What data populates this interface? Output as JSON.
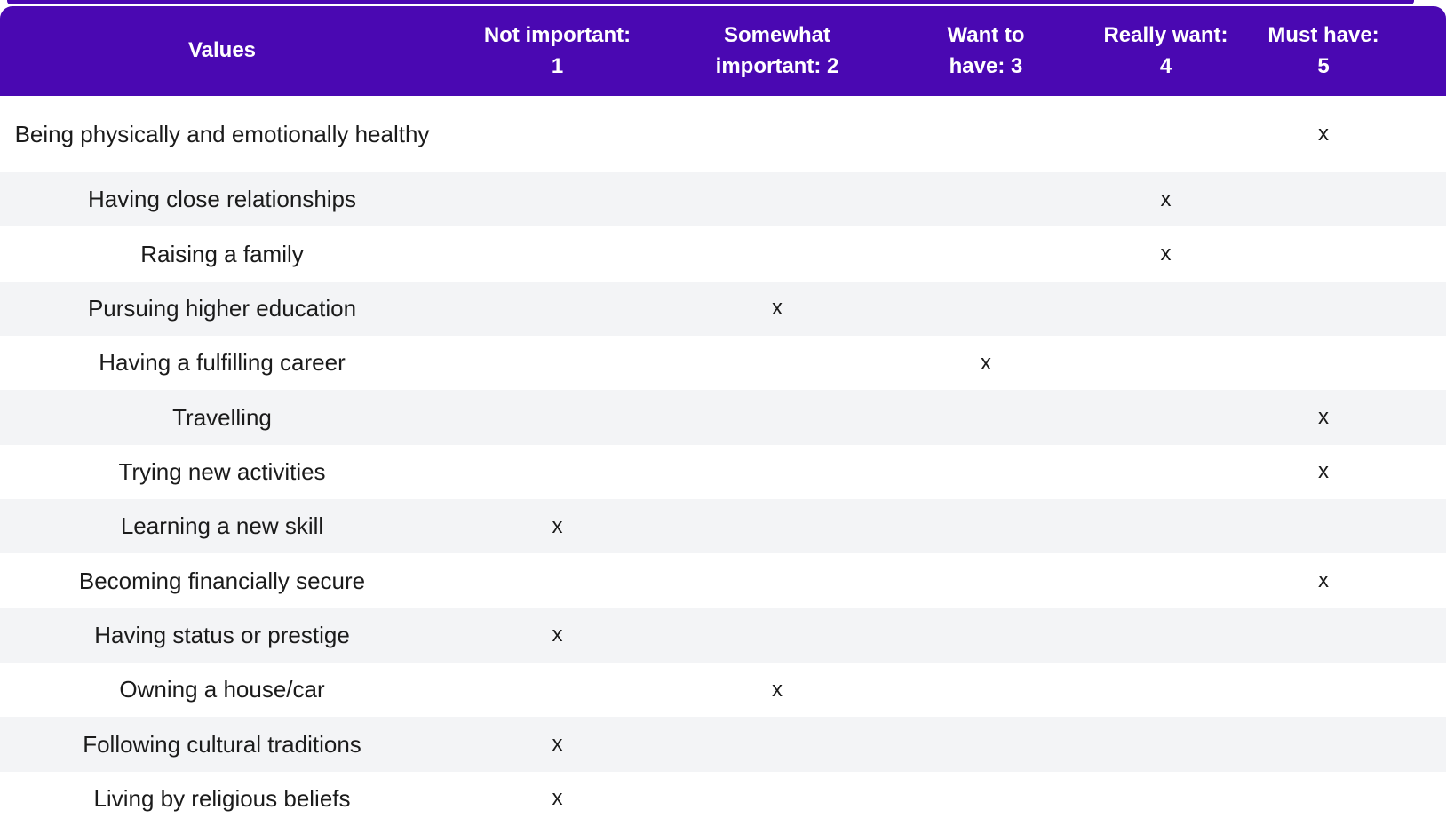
{
  "colors": {
    "header_bg": "#4A08B2",
    "header_text": "#FFFFFF",
    "row_alt_bg": "#F3F4F6",
    "row_bg": "#FFFFFF",
    "text": "#1B1B1B"
  },
  "table": {
    "mark": "x",
    "header": {
      "columns": [
        {
          "label": "Values",
          "line1": "Values",
          "line2": ""
        },
        {
          "label": "Not important: 1",
          "line1": "Not important:",
          "line2": "1"
        },
        {
          "label": "Somewhat important: 2",
          "line1": "Somewhat",
          "line2": "important: 2"
        },
        {
          "label": "Want to have: 3",
          "line1": "Want to",
          "line2": "have: 3"
        },
        {
          "label": "Really want: 4",
          "line1": "Really want:",
          "line2": "4"
        },
        {
          "label": "Must have: 5",
          "line1": "Must have:",
          "line2": "5"
        }
      ]
    },
    "rows": [
      {
        "label": "Being physically and emotionally healthy",
        "rating": 5,
        "cells": [
          "",
          "",
          "",
          "",
          "x"
        ]
      },
      {
        "label": "Having close relationships",
        "rating": 4,
        "cells": [
          "",
          "",
          "",
          "x",
          ""
        ]
      },
      {
        "label": "Raising a family",
        "rating": 4,
        "cells": [
          "",
          "",
          "",
          "x",
          ""
        ]
      },
      {
        "label": "Pursuing higher education",
        "rating": 2,
        "cells": [
          "",
          "x",
          "",
          "",
          ""
        ]
      },
      {
        "label": "Having a fulfilling career",
        "rating": 3,
        "cells": [
          "",
          "",
          "x",
          "",
          ""
        ]
      },
      {
        "label": "Travelling",
        "rating": 5,
        "cells": [
          "",
          "",
          "",
          "",
          "x"
        ]
      },
      {
        "label": "Trying new activities",
        "rating": 5,
        "cells": [
          "",
          "",
          "",
          "",
          "x"
        ]
      },
      {
        "label": "Learning a new skill",
        "rating": 1,
        "cells": [
          "x",
          "",
          "",
          "",
          ""
        ]
      },
      {
        "label": "Becoming financially secure",
        "rating": 5,
        "cells": [
          "",
          "",
          "",
          "",
          "x"
        ]
      },
      {
        "label": "Having status or prestige",
        "rating": 1,
        "cells": [
          "x",
          "",
          "",
          "",
          ""
        ]
      },
      {
        "label": "Owning a house/car",
        "rating": 2,
        "cells": [
          "",
          "x",
          "",
          "",
          ""
        ]
      },
      {
        "label": "Following cultural traditions",
        "rating": 1,
        "cells": [
          "x",
          "",
          "",
          "",
          ""
        ]
      },
      {
        "label": "Living by religious beliefs",
        "rating": 1,
        "cells": [
          "x",
          "",
          "",
          "",
          ""
        ]
      }
    ]
  }
}
